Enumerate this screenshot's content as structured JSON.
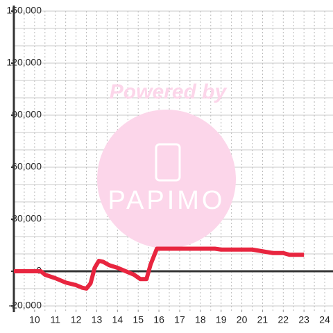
{
  "chart_data": {
    "type": "line",
    "watermark": {
      "top": "Powered by",
      "logo": "PAPIMO"
    },
    "x": [
      9,
      10.3,
      10.5,
      11,
      11.5,
      12,
      12.3,
      12.5,
      12.7,
      12.9,
      13.1,
      13.3,
      13.6,
      14,
      14.4,
      14.8,
      15.1,
      15.4,
      15.6,
      15.9,
      18.7,
      19,
      20.5,
      21,
      21.5,
      22,
      22.3,
      23
    ],
    "series": [
      {
        "color": "#e8253f",
        "values": [
          0,
          0,
          -2000,
          -4000,
          -6500,
          -8000,
          -9500,
          -10000,
          -7000,
          2000,
          6000,
          5500,
          3500,
          2000,
          0,
          -2000,
          -4500,
          -4500,
          4000,
          13000,
          13000,
          12500,
          12500,
          11500,
          10500,
          10500,
          9500,
          9500
        ]
      }
    ],
    "xlim": [
      9,
      24.4
    ],
    "xticks": [
      10,
      11,
      12,
      13,
      14,
      15,
      16,
      17,
      18,
      19,
      20,
      21,
      22,
      23,
      24
    ],
    "xgrid": [
      9.5,
      10,
      10.5,
      11,
      11.5,
      12,
      12.5,
      13,
      13.5,
      14,
      14.5,
      15,
      15.5,
      16,
      16.5,
      17,
      17.5,
      18,
      18.5,
      19,
      19.5,
      20,
      20.5,
      21,
      21.5,
      22,
      22.5,
      23,
      23.5,
      24
    ],
    "ylim": [
      -23600,
      150000
    ],
    "yticks": [
      {
        "value": 150000,
        "label": "150,000"
      },
      {
        "value": 120000,
        "label": "120,000"
      },
      {
        "value": 90000,
        "label": "90,000"
      },
      {
        "value": 60000,
        "label": "60,000"
      },
      {
        "value": 30000,
        "label": "30,000"
      },
      0,
      {
        "value": -20000,
        "label": "-20,000"
      }
    ],
    "ygrid": [
      -20000,
      -10000,
      10000,
      20000,
      30000,
      40000,
      50000,
      60000,
      70000,
      80000,
      90000,
      100000,
      110000,
      120000,
      130000,
      140000,
      150000
    ],
    "grid": true
  }
}
